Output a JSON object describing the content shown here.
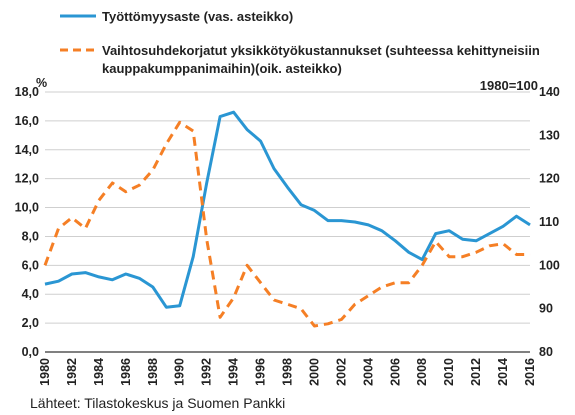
{
  "chart_data": {
    "type": "line",
    "legend": {
      "position": "top",
      "entries": [
        {
          "label": "Työttömyysaste (vas. asteikko)",
          "style": "solid",
          "color": "#2a96d3"
        },
        {
          "label_lines": [
            "Vaihtosuhdekorjatut yksikkötyökustannukset (suhteessa kehittyneisiin",
            "kauppakumppanimaihin)(oik. asteikko)"
          ],
          "style": "dashed",
          "color": "#f57f25"
        }
      ]
    },
    "left_axis_unit": "%",
    "right_axis_note": "1980=100",
    "source": "Lähteet: Tilastokeskus ja Suomen Pankki",
    "grid": true,
    "x": [
      1980,
      1981,
      1982,
      1983,
      1984,
      1985,
      1986,
      1987,
      1988,
      1989,
      1990,
      1991,
      1992,
      1993,
      1994,
      1995,
      1996,
      1997,
      1998,
      1999,
      2000,
      2001,
      2002,
      2003,
      2004,
      2005,
      2006,
      2007,
      2008,
      2009,
      2010,
      2011,
      2012,
      2013,
      2014,
      2015,
      2016
    ],
    "x_tick_labels": [
      "1980",
      "1982",
      "1984",
      "1986",
      "1988",
      "1990",
      "1992",
      "1994",
      "1996",
      "1998",
      "2000",
      "2002",
      "2004",
      "2006",
      "2008",
      "2010",
      "2012",
      "2014",
      "2016"
    ],
    "xlim": [
      1980,
      2016
    ],
    "y_left": {
      "ylim": [
        0,
        18
      ],
      "tick_labels": [
        "0,0",
        "2,0",
        "4,0",
        "6,0",
        "8,0",
        "10,0",
        "12,0",
        "14,0",
        "16,0",
        "18,0"
      ]
    },
    "y_right": {
      "ylim": [
        80,
        140
      ],
      "tick_labels": [
        "80",
        "90",
        "100",
        "110",
        "120",
        "130",
        "140"
      ]
    },
    "series": [
      {
        "name": "Työttömyysaste (vas. asteikko)",
        "axis": "left",
        "color": "#2a96d3",
        "values": [
          4.7,
          4.9,
          5.4,
          5.5,
          5.2,
          5.0,
          5.4,
          5.1,
          4.5,
          3.1,
          3.2,
          6.6,
          11.7,
          16.3,
          16.6,
          15.4,
          14.6,
          12.7,
          11.4,
          10.2,
          9.8,
          9.1,
          9.1,
          9.0,
          8.8,
          8.4,
          7.7,
          6.9,
          6.4,
          8.2,
          8.4,
          7.8,
          7.7,
          8.2,
          8.7,
          9.4,
          8.8
        ]
      },
      {
        "name": "Vaihtosuhdekorjatut yksikkötyökustannukset (suhteessa kehittyneisiin kauppakumppanimaihin)(oik. asteikko)",
        "axis": "right",
        "color": "#f57f25",
        "values": [
          100,
          108.5,
          111,
          108.5,
          115,
          119,
          117,
          118.5,
          122,
          128,
          133,
          131,
          106,
          88,
          92.5,
          100,
          96,
          92,
          91,
          90,
          86,
          86.5,
          87.5,
          91,
          93,
          95,
          96,
          96,
          100,
          105.5,
          102,
          102,
          103,
          104.5,
          105,
          102.5,
          102.5
        ]
      }
    ]
  }
}
